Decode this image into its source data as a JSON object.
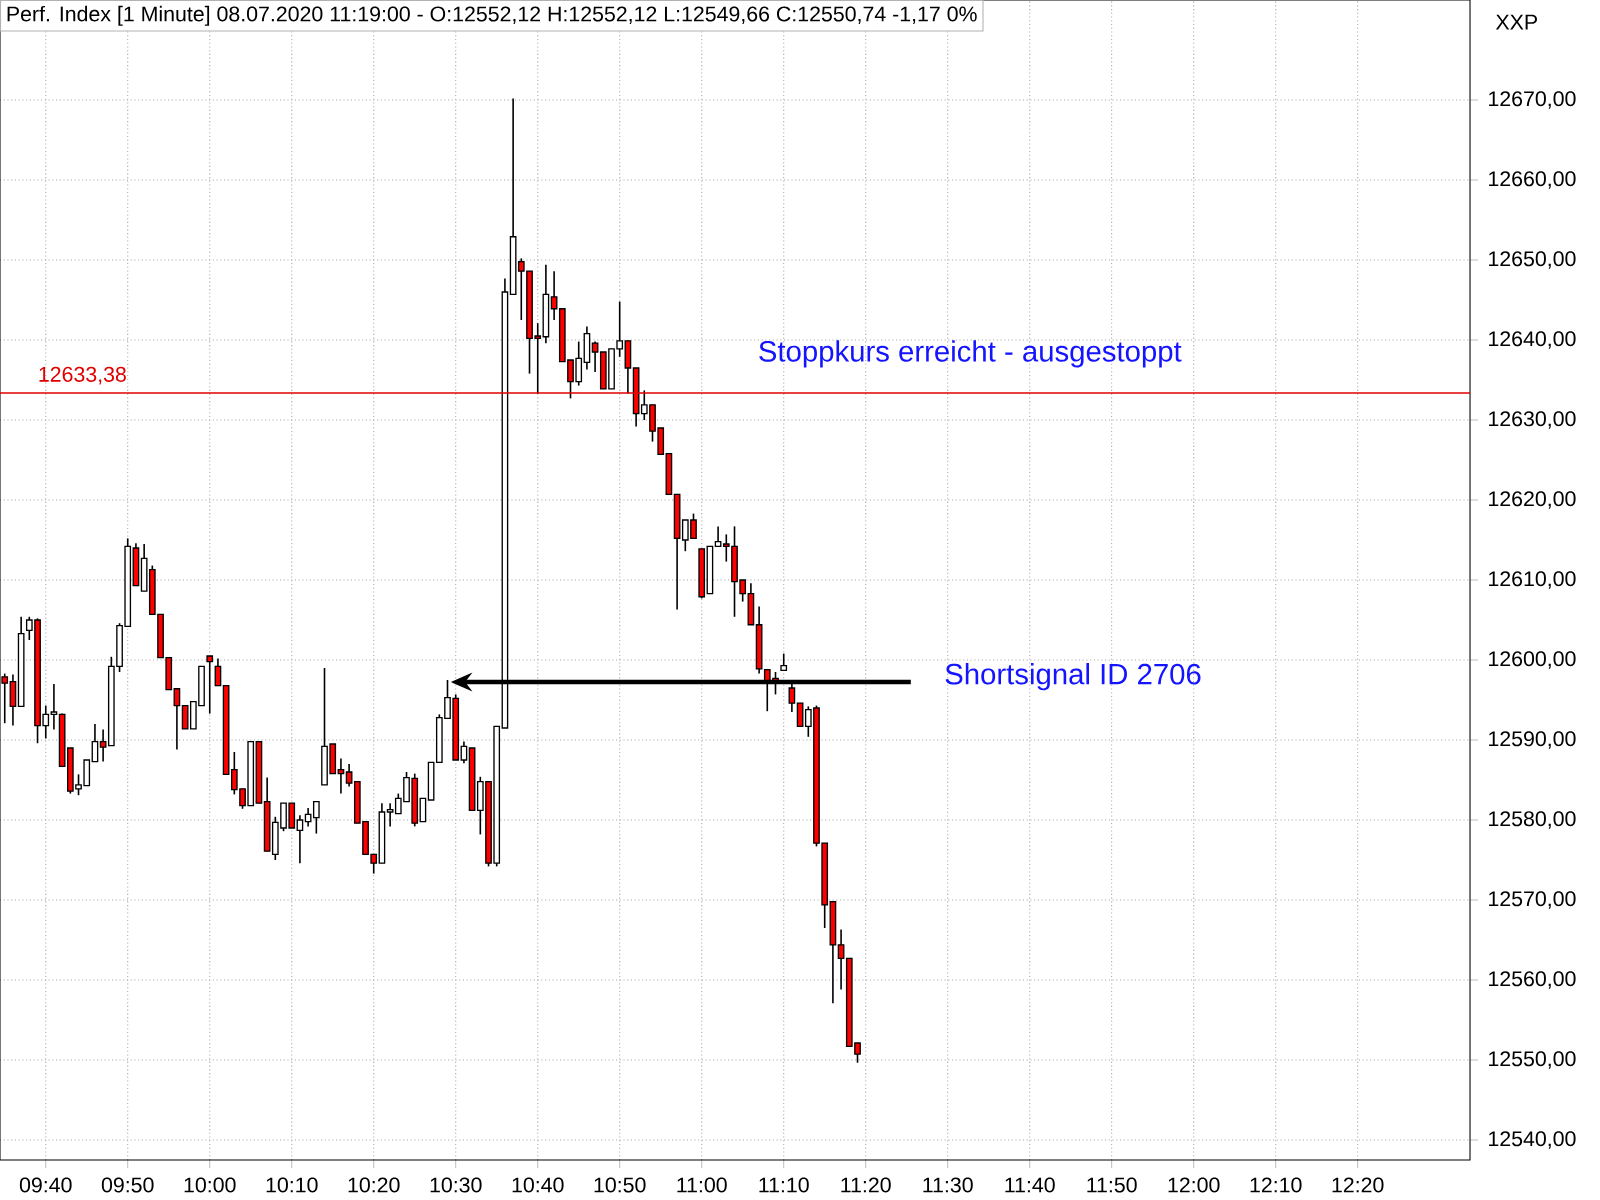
{
  "chart_data": {
    "type": "candlestick",
    "title": "Perf. Index [1 Minute] 08.07.2020 11:19:00 - O:12552,12 H:12552,12 L:12549,66 C:12550,74 -1,17 0%",
    "ylabel": "XXP",
    "x": [
      9.5833,
      9.6,
      9.6167,
      9.6333,
      9.65,
      9.6667,
      9.6833,
      9.7,
      9.7167,
      9.7333,
      9.75,
      9.7667,
      9.7833,
      9.8,
      9.8167,
      9.8333,
      9.85,
      9.8667,
      9.8833,
      9.9,
      9.9167,
      9.9333,
      9.95,
      9.9667,
      9.9833,
      10,
      10.0167,
      10.0333,
      10.05,
      10.0667,
      10.0833,
      10.1,
      10.1167,
      10.1333,
      10.15,
      10.1667,
      10.1833,
      10.2,
      10.2167,
      10.2333,
      10.25,
      10.2667,
      10.2833,
      10.3,
      10.3167,
      10.3333,
      10.35,
      10.3667,
      10.3833,
      10.4,
      10.4167,
      10.4333,
      10.45,
      10.4667,
      10.4833,
      10.5,
      10.5167,
      10.5333,
      10.55,
      10.5667,
      10.5833,
      10.6,
      10.6167,
      10.6333,
      10.65,
      10.6667,
      10.6833,
      10.7,
      10.7167,
      10.7333,
      10.75,
      10.7667,
      10.7833,
      10.8,
      10.8167,
      10.8333,
      10.85,
      10.8667,
      10.8833,
      10.9,
      10.9167,
      10.9333,
      10.95,
      10.9667,
      10.9833,
      11,
      11.0167,
      11.0333,
      11.05,
      11.0667,
      11.0833,
      11.1,
      11.1167,
      11.1333,
      11.15,
      11.1667,
      11.1833,
      11.2,
      11.2167,
      11.2333,
      11.25,
      11.2667,
      11.2833,
      11.3,
      11.3167
    ],
    "ohlc": [
      [
        12597.9,
        12598.3,
        12592.1,
        12597.1
      ],
      [
        12597.3,
        12598.2,
        12591.8,
        12594.2
      ],
      [
        12594.2,
        12605.4,
        12594.2,
        12603.3
      ],
      [
        12603.7,
        12605.4,
        12602.5,
        12605.0
      ],
      [
        12605.0,
        12605.2,
        12589.6,
        12591.8
      ],
      [
        12591.8,
        12594.3,
        12590.2,
        12593.2
      ],
      [
        12593.2,
        12597.0,
        12591.3,
        12593.5
      ],
      [
        12593.2,
        12593.3,
        12586.7,
        12586.7
      ],
      [
        12589.0,
        12589.0,
        12583.3,
        12583.6
      ],
      [
        12583.9,
        12585.7,
        12583.1,
        12584.4
      ],
      [
        12584.3,
        12587.5,
        12584.3,
        12587.5
      ],
      [
        12587.3,
        12592.0,
        12587.3,
        12589.8
      ],
      [
        12589.8,
        12591.3,
        12587.3,
        12589.1
      ],
      [
        12589.3,
        12600.4,
        12589.3,
        12599.2
      ],
      [
        12599.2,
        12604.6,
        12598.5,
        12604.3
      ],
      [
        12604.2,
        12615.2,
        12604.2,
        12614.2
      ],
      [
        12614.0,
        12614.6,
        12609.3,
        12609.3
      ],
      [
        12608.6,
        12614.5,
        12608.6,
        12612.7
      ],
      [
        12611.3,
        12611.8,
        12605.7,
        12605.7
      ],
      [
        12605.7,
        12605.7,
        12600.3,
        12600.3
      ],
      [
        12600.3,
        12600.3,
        12596.3,
        12596.3
      ],
      [
        12596.4,
        12596.4,
        12588.8,
        12594.3
      ],
      [
        12594.3,
        12594.3,
        12591.4,
        12591.4
      ],
      [
        12591.4,
        12594.8,
        12591.4,
        12594.8
      ],
      [
        12594.3,
        12599.2,
        12594.3,
        12599.2
      ],
      [
        12600.5,
        12600.5,
        12593.3,
        12599.8
      ],
      [
        12599.2,
        12600.2,
        12596.8,
        12596.8
      ],
      [
        12596.8,
        12596.8,
        12585.7,
        12585.7
      ],
      [
        12586.3,
        12588.5,
        12583.2,
        12583.8
      ],
      [
        12583.9,
        12583.9,
        12581.4,
        12581.8
      ],
      [
        12581.8,
        12589.8,
        12581.8,
        12589.8
      ],
      [
        12589.8,
        12589.8,
        12582.1,
        12582.1
      ],
      [
        12582.3,
        12585.3,
        12576.1,
        12576.1
      ],
      [
        12575.7,
        12580.4,
        12575.0,
        12579.7
      ],
      [
        12579.0,
        12582.1,
        12578.6,
        12582.1
      ],
      [
        12582.1,
        12582.1,
        12579.0,
        12579.0
      ],
      [
        12578.7,
        12580.6,
        12574.6,
        12580.0
      ],
      [
        12579.8,
        12581.5,
        12579.2,
        12580.7
      ],
      [
        12580.3,
        12582.3,
        12578.3,
        12582.3
      ],
      [
        12584.4,
        12599.0,
        12584.4,
        12589.2
      ],
      [
        12589.5,
        12589.5,
        12585.8,
        12585.8
      ],
      [
        12586.3,
        12587.7,
        12583.3,
        12585.8
      ],
      [
        12586.0,
        12587.0,
        12584.2,
        12584.6
      ],
      [
        12584.8,
        12584.8,
        12579.6,
        12579.6
      ],
      [
        12579.8,
        12579.8,
        12575.7,
        12575.7
      ],
      [
        12575.7,
        12575.7,
        12573.3,
        12574.6
      ],
      [
        12574.6,
        12582.1,
        12574.6,
        12581.0
      ],
      [
        12581.0,
        12582.1,
        12579.2,
        12581.3
      ],
      [
        12580.8,
        12583.3,
        12580.8,
        12582.7
      ],
      [
        12582.3,
        12586.0,
        12582.3,
        12585.3
      ],
      [
        12585.2,
        12585.8,
        12579.2,
        12579.6
      ],
      [
        12579.8,
        12582.7,
        12579.8,
        12582.7
      ],
      [
        12582.5,
        12587.2,
        12582.5,
        12587.2
      ],
      [
        12587.2,
        12593.2,
        12587.2,
        12592.8
      ],
      [
        12592.7,
        12597.5,
        12592.7,
        12595.3
      ],
      [
        12595.2,
        12595.7,
        12587.5,
        12587.5
      ],
      [
        12587.5,
        12589.8,
        12587.1,
        12589.2
      ],
      [
        12589.0,
        12589.0,
        12581.2,
        12581.2
      ],
      [
        12581.2,
        12585.4,
        12578.2,
        12584.8
      ],
      [
        12584.8,
        12584.8,
        12574.2,
        12574.6
      ],
      [
        12574.6,
        12591.7,
        12574.2,
        12591.7
      ],
      [
        12591.5,
        12647.7,
        12591.5,
        12646.0
      ],
      [
        12645.7,
        12670.2,
        12645.7,
        12652.9
      ],
      [
        12649.8,
        12650.2,
        12642.5,
        12648.6
      ],
      [
        12648.6,
        12648.6,
        12635.8,
        12640.2
      ],
      [
        12640.5,
        12642.1,
        12633.3,
        12640.2
      ],
      [
        12640.4,
        12649.4,
        12639.6,
        12645.7
      ],
      [
        12645.4,
        12648.6,
        12642.5,
        12643.9
      ],
      [
        12643.9,
        12643.9,
        12637.3,
        12637.3
      ],
      [
        12637.5,
        12637.5,
        12632.7,
        12634.8
      ],
      [
        12634.8,
        12639.8,
        12634.3,
        12637.7
      ],
      [
        12637.2,
        12641.7,
        12636.3,
        12640.8
      ],
      [
        12639.6,
        12639.8,
        12636.0,
        12638.5
      ],
      [
        12638.5,
        12638.5,
        12633.9,
        12633.9
      ],
      [
        12633.9,
        12638.9,
        12633.9,
        12638.9
      ],
      [
        12638.9,
        12644.8,
        12637.9,
        12639.9
      ],
      [
        12639.9,
        12639.9,
        12633.3,
        12636.5
      ],
      [
        12636.5,
        12636.5,
        12629.2,
        12630.8
      ],
      [
        12630.8,
        12633.7,
        12630.0,
        12631.9
      ],
      [
        12631.9,
        12631.9,
        12627.3,
        12628.6
      ],
      [
        12629.0,
        12629.0,
        12625.7,
        12625.7
      ],
      [
        12625.8,
        12625.8,
        12620.7,
        12620.7
      ],
      [
        12620.7,
        12620.7,
        12606.3,
        12615.2
      ],
      [
        12615.0,
        12617.5,
        12613.6,
        12617.5
      ],
      [
        12617.5,
        12618.3,
        12615.2,
        12615.2
      ],
      [
        12613.9,
        12613.9,
        12607.7,
        12607.9
      ],
      [
        12608.3,
        12614.2,
        12608.3,
        12614.2
      ],
      [
        12614.2,
        12616.7,
        12614.2,
        12614.8
      ],
      [
        12614.5,
        12615.7,
        12612.3,
        12614.2
      ],
      [
        12614.2,
        12616.7,
        12605.4,
        12609.8
      ],
      [
        12610.0,
        12610.0,
        12607.3,
        12608.3
      ],
      [
        12608.3,
        12609.6,
        12604.4,
        12604.4
      ],
      [
        12604.4,
        12606.7,
        12598.3,
        12598.9
      ],
      [
        12598.8,
        12598.8,
        12593.6,
        12597.1
      ],
      [
        12597.7,
        12598.5,
        12595.7,
        12597.3
      ],
      [
        12598.7,
        12600.8,
        12598.7,
        12599.3
      ],
      [
        12596.5,
        12597.1,
        12593.5,
        12594.6
      ],
      [
        12594.6,
        12594.6,
        12591.7,
        12591.7
      ],
      [
        12591.7,
        12594.2,
        12590.4,
        12593.8
      ],
      [
        12594.0,
        12594.3,
        12576.7,
        12577.1
      ],
      [
        12577.1,
        12577.1,
        12566.5,
        12569.4
      ],
      [
        12569.8,
        12569.8,
        12557.1,
        12564.4
      ],
      [
        12564.4,
        12566.3,
        12558.8,
        12562.7
      ],
      [
        12562.7,
        12562.7,
        12551.7,
        12551.7
      ],
      [
        12552.12,
        12552.12,
        12549.66,
        12550.74
      ]
    ],
    "xlim": [
      9.5737,
      12.5617
    ],
    "xticks": [
      {
        "value": 9.6667,
        "label": "09:40"
      },
      {
        "value": 9.8333,
        "label": "09:50"
      },
      {
        "value": 10,
        "label": "10:00"
      },
      {
        "value": 10.1667,
        "label": "10:10"
      },
      {
        "value": 10.3333,
        "label": "10:20"
      },
      {
        "value": 10.5,
        "label": "10:30"
      },
      {
        "value": 10.6667,
        "label": "10:40"
      },
      {
        "value": 10.8333,
        "label": "10:50"
      },
      {
        "value": 11,
        "label": "11:00"
      },
      {
        "value": 11.1667,
        "label": "11:10"
      },
      {
        "value": 11.3333,
        "label": "11:20"
      },
      {
        "value": 11.5,
        "label": "11:30"
      },
      {
        "value": 11.6667,
        "label": "11:40"
      },
      {
        "value": 11.8333,
        "label": "11:50"
      },
      {
        "value": 12,
        "label": "12:00"
      },
      {
        "value": 12.1667,
        "label": "12:10"
      },
      {
        "value": 12.3333,
        "label": "12:20"
      }
    ],
    "ylim": [
      12537.5,
      12682.5
    ],
    "yticks": [
      {
        "value": 12540,
        "label": "12540,00"
      },
      {
        "value": 12550,
        "label": "12550,00"
      },
      {
        "value": 12560,
        "label": "12560,00"
      },
      {
        "value": 12570,
        "label": "12570,00"
      },
      {
        "value": 12580,
        "label": "12580,00"
      },
      {
        "value": 12590,
        "label": "12590,00"
      },
      {
        "value": 12600,
        "label": "12600,00"
      },
      {
        "value": 12610,
        "label": "12610,00"
      },
      {
        "value": 12620,
        "label": "12620,00"
      },
      {
        "value": 12630,
        "label": "12630,00"
      },
      {
        "value": 12640,
        "label": "12640,00"
      },
      {
        "value": 12650,
        "label": "12650,00"
      },
      {
        "value": 12660,
        "label": "12660,00"
      },
      {
        "value": 12670,
        "label": "12670,00"
      }
    ],
    "grid": true,
    "ref_lines": [
      {
        "axis": "y",
        "value": 12633.38,
        "label": "12633,38",
        "color": "#e00000"
      }
    ],
    "annotations": [
      {
        "text": "Stoppkurs erreicht - ausgestoppt",
        "x": 11.545,
        "y": 12633.38
      },
      {
        "text": "Shortsignal ID 2706",
        "x": 10.49,
        "y": 12597.25
      }
    ]
  }
}
